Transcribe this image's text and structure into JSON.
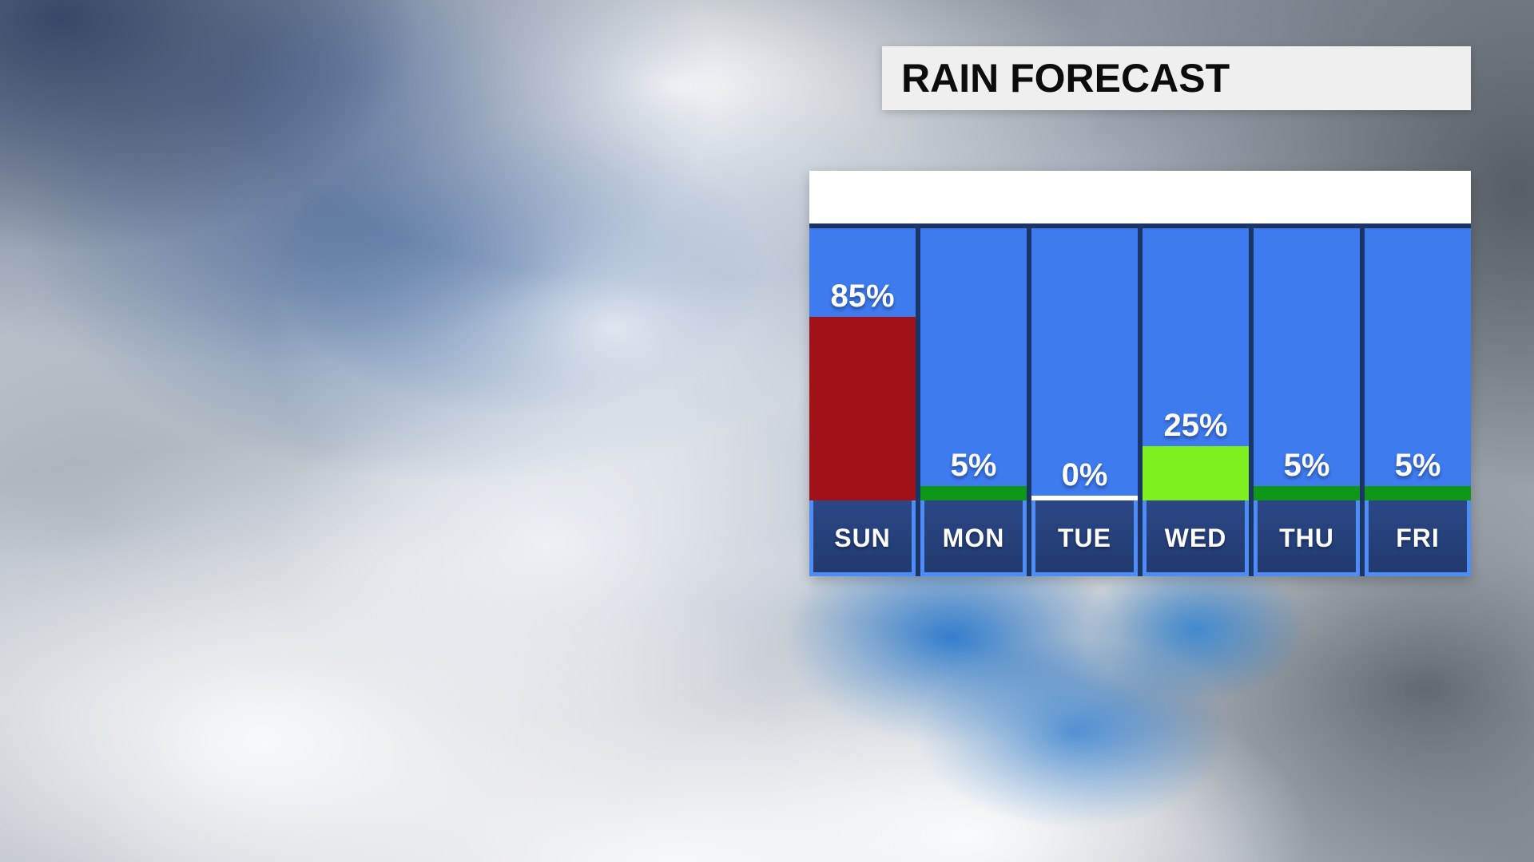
{
  "title_bar": {
    "label": "RAIN FORECAST",
    "background": "#efefef",
    "text_color": "#0c0c0c"
  },
  "panel": {
    "background_navy": "#1c3567",
    "scale_strip_color": "#ffffff",
    "column_blue": "#3e7bee",
    "day_frame_blue": "#4e8cf8",
    "day_box_navy": "#26417e",
    "zero_line_color": "#ffffff"
  },
  "forecast": {
    "days": [
      {
        "name": "SUN",
        "value": 85,
        "value_label": "85%",
        "bar_color": "#a01217"
      },
      {
        "name": "MON",
        "value": 5,
        "value_label": "5%",
        "bar_color": "#0f9818"
      },
      {
        "name": "TUE",
        "value": 0,
        "value_label": "0%",
        "bar_color": "#ffffff"
      },
      {
        "name": "WED",
        "value": 25,
        "value_label": "25%",
        "bar_color": "#7ef01e"
      },
      {
        "name": "THU",
        "value": 5,
        "value_label": "5%",
        "bar_color": "#0f9818"
      },
      {
        "name": "FRI",
        "value": 5,
        "value_label": "5%",
        "bar_color": "#0f9818"
      }
    ]
  },
  "chart_data": {
    "type": "bar",
    "title": "RAIN FORECAST",
    "categories": [
      "SUN",
      "MON",
      "TUE",
      "WED",
      "THU",
      "FRI"
    ],
    "values": [
      85,
      5,
      0,
      25,
      5,
      5
    ],
    "value_labels": [
      "85%",
      "5%",
      "0%",
      "25%",
      "5%",
      "5%"
    ],
    "unit": "%",
    "ylim": [
      0,
      100
    ],
    "bar_colors": [
      "#a01217",
      "#0f9818",
      "#ffffff",
      "#7ef01e",
      "#0f9818",
      "#0f9818"
    ],
    "orientation": "vertical",
    "legend": false,
    "grid": false,
    "notes": "Chance-of-rain bars rise from day labels; 0% drawn as thin white line; color encodes intensity (red=high, yellow-green=moderate, green=low)"
  }
}
